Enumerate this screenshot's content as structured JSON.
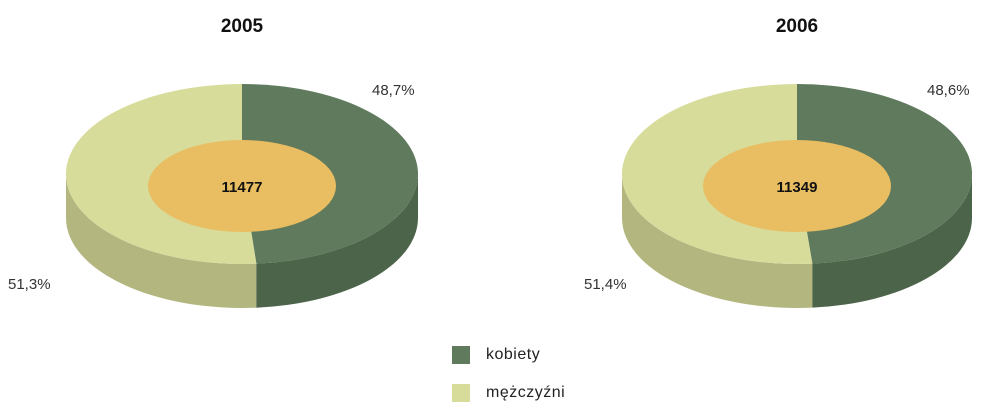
{
  "colors": {
    "women_top": "#5f7a5c",
    "women_side": "#4c6449",
    "men_top": "#d7dc9b",
    "men_side": "#b3b67f",
    "center": "#e9bd62"
  },
  "legend": {
    "items": [
      {
        "label": "kobiety",
        "color": "#5f7a5c"
      },
      {
        "label": "mężczyźni",
        "color": "#d7dc9b"
      }
    ]
  },
  "chart_data": [
    {
      "type": "pie",
      "title": "2005",
      "total": "11477",
      "slices": [
        {
          "label": "kobiety",
          "value": 48.7,
          "display": "48,7%"
        },
        {
          "label": "mężczyźni",
          "value": 51.3,
          "display": "51,3%"
        }
      ]
    },
    {
      "type": "pie",
      "title": "2006",
      "total": "11349",
      "slices": [
        {
          "label": "kobiety",
          "value": 48.6,
          "display": "48,6%"
        },
        {
          "label": "mężczyźni",
          "value": 51.4,
          "display": "51,4%"
        }
      ]
    }
  ]
}
